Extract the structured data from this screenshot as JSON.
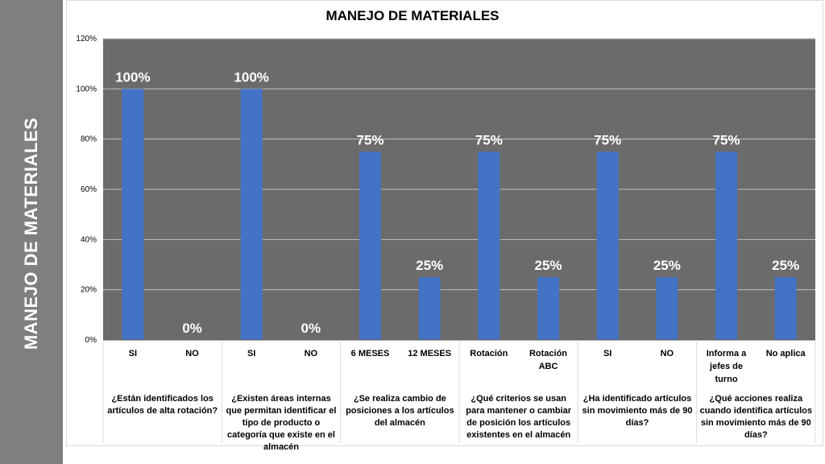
{
  "sidebar": {
    "title": "MANEJO DE MATERIALES"
  },
  "chart_data": {
    "type": "bar",
    "title": "MANEJO DE MATERIALES",
    "ylim": [
      0,
      120
    ],
    "yticks": [
      "0%",
      "20%",
      "40%",
      "60%",
      "80%",
      "100%",
      "120%"
    ],
    "grid": true,
    "colors": {
      "plot_bg": "#6b6b6b",
      "bar": "#4472c4",
      "label": "#ffffff"
    },
    "categories": [
      "SI",
      "NO",
      "SI",
      "NO",
      "6 MESES",
      "12 MESES",
      "Rotación",
      "Rotación ABC",
      "SI",
      "NO",
      "Informa a jefes de turno",
      "No aplica"
    ],
    "values": [
      100,
      0,
      100,
      0,
      75,
      25,
      75,
      25,
      75,
      25,
      75,
      25
    ],
    "data_labels": [
      "100%",
      "0%",
      "100%",
      "0%",
      "75%",
      "25%",
      "75%",
      "25%",
      "75%",
      "25%",
      "75%",
      "25%"
    ],
    "groups": [
      {
        "label": "¿Están identificados los artículos de alta rotación?",
        "span": 2
      },
      {
        "label": "¿Existen áreas internas que permitan identificar el tipo de producto o categoría que existe en el almacén",
        "span": 2
      },
      {
        "label": "¿Se realiza cambio de posiciones a los artículos del almacén",
        "span": 2
      },
      {
        "label": "¿Qué criterios se usan para mantener o cambiar de posición los artículos existentes en el almacén",
        "span": 2
      },
      {
        "label": "¿Ha identificado artículos sin movimiento más de 90 días?",
        "span": 2
      },
      {
        "label": "¿Qué acciones realiza cuando identifica artículos sin movimiento más de 90 días?",
        "span": 2
      }
    ]
  }
}
